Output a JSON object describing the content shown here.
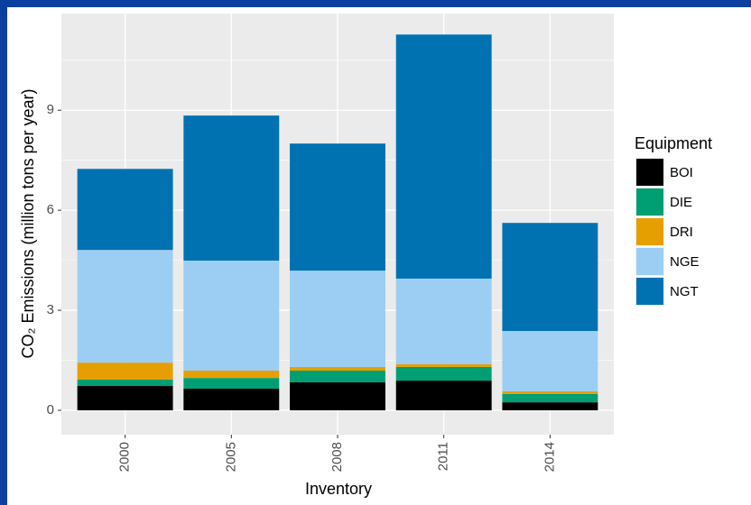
{
  "chart_data": {
    "type": "stacked_bar",
    "x_label": "Inventory",
    "y_label": "CO₂ Emissions (million tons per year)",
    "legend_title": "Equipment",
    "legend_position": "right",
    "categories": [
      "2000",
      "2005",
      "2008",
      "2011",
      "2014"
    ],
    "series": [
      {
        "name": "BOI",
        "color": "#000000",
        "values": [
          0.73,
          0.65,
          0.84,
          0.89,
          0.24
        ]
      },
      {
        "name": "DIE",
        "color": "#009E73",
        "values": [
          0.19,
          0.32,
          0.35,
          0.41,
          0.25
        ]
      },
      {
        "name": "DRI",
        "color": "#E69F00",
        "values": [
          0.51,
          0.22,
          0.11,
          0.08,
          0.08
        ]
      },
      {
        "name": "NGE",
        "color": "#9CCEF3",
        "values": [
          3.38,
          3.3,
          2.89,
          2.57,
          1.81
        ]
      },
      {
        "name": "NGT",
        "color": "#0072B2",
        "values": [
          2.43,
          4.35,
          3.81,
          7.32,
          3.24
        ]
      }
    ],
    "ylim": [
      -0.73,
      11.9
    ],
    "yticks": [
      0,
      3,
      6,
      9
    ],
    "y_minor_ticks": [
      1.5,
      4.5,
      7.5,
      10.5
    ],
    "grid": true
  }
}
